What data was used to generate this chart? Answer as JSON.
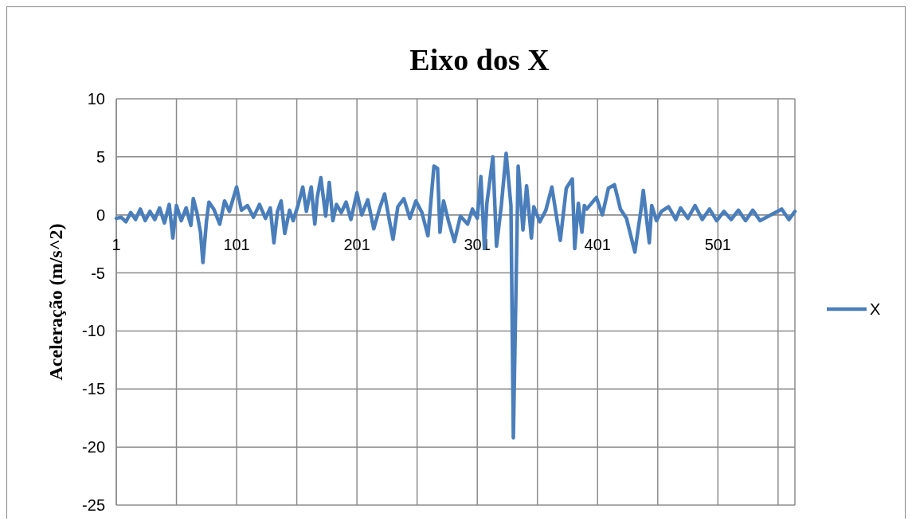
{
  "chart_data": {
    "type": "line",
    "title": "Eixo dos X",
    "ylabel": "Aceleração (m/s^2)",
    "xlim": [
      1,
      565
    ],
    "xticks": [
      1,
      {
        "value": 51,
        "label": null
      },
      101,
      {
        "value": 151,
        "label": null
      },
      201,
      {
        "value": 251,
        "label": null
      },
      301,
      {
        "value": 351,
        "label": null
      },
      401,
      {
        "value": 451,
        "label": null
      },
      501,
      {
        "value": 551,
        "label": null
      }
    ],
    "ylim": [
      -25,
      10
    ],
    "yticks": [
      -25,
      -20,
      -15,
      -10,
      -5,
      0,
      5,
      10
    ],
    "grid": true,
    "legend": "right",
    "marker": "none",
    "line_style": "solid",
    "series": [
      {
        "name": "X",
        "color": "#4a7ebb",
        "x": [
          1,
          5,
          9,
          13,
          17,
          21,
          25,
          29,
          33,
          37,
          41,
          45,
          48,
          51,
          55,
          59,
          63,
          65,
          68,
          71,
          73,
          76,
          78,
          82,
          87,
          91,
          95,
          101,
          105,
          110,
          115,
          120,
          125,
          129,
          132,
          135,
          138,
          141,
          145,
          148,
          152,
          156,
          159,
          163,
          166,
          168,
          171,
          175,
          178,
          181,
          184,
          188,
          192,
          196,
          201,
          205,
          210,
          215,
          220,
          224,
          228,
          231,
          235,
          240,
          245,
          250,
          255,
          260,
          265,
          268,
          270,
          273,
          277,
          282,
          287,
          293,
          297,
          301,
          304,
          307,
          309,
          314,
          317,
          321,
          325,
          329,
          331,
          335,
          339,
          342,
          346,
          348,
          353,
          358,
          363,
          370,
          375,
          380,
          382,
          385,
          388,
          390,
          392,
          400,
          405,
          410,
          415,
          420,
          425,
          432,
          437,
          439,
          444,
          446,
          450,
          454,
          460,
          466,
          470,
          476,
          482,
          488,
          494,
          500,
          506,
          512,
          518,
          524,
          530,
          536,
          554,
          560,
          565
        ],
        "values": [
          -0.3,
          -0.2,
          -0.6,
          0.2,
          -0.4,
          0.5,
          -0.5,
          0.3,
          -0.4,
          0.6,
          -0.7,
          0.9,
          -2.0,
          0.8,
          -0.5,
          0.6,
          -0.9,
          1.4,
          0.2,
          -1.5,
          -4.1,
          -0.5,
          1.1,
          0.5,
          -0.8,
          1.2,
          0.3,
          2.4,
          0.4,
          0.8,
          -0.2,
          0.9,
          -0.3,
          0.6,
          -2.4,
          0.3,
          1.2,
          -1.6,
          0.4,
          -0.5,
          0.8,
          2.4,
          0.3,
          2.4,
          -0.8,
          1.5,
          3.2,
          -0.1,
          2.8,
          -0.5,
          0.9,
          0.2,
          1.1,
          -0.4,
          1.9,
          0,
          1.3,
          -1.2,
          0.6,
          1.8,
          -0.5,
          -2.1,
          0.7,
          1.4,
          -0.3,
          1.2,
          0.2,
          -1.8,
          4.2,
          4.0,
          -1.5,
          1.2,
          -0.5,
          -2.3,
          -0.1,
          -0.8,
          0.5,
          -0.3,
          3.3,
          -2.9,
          1.0,
          5.0,
          -2.7,
          0.8,
          5.3,
          0.8,
          -19.2,
          4.2,
          -1.3,
          2.5,
          -2.0,
          0.7,
          -0.6,
          0.4,
          2.4,
          -2.2,
          2.3,
          3.1,
          -2.9,
          1.0,
          -1.5,
          0.8,
          0.5,
          1.5,
          0,
          2.3,
          2.6,
          0.5,
          -0.3,
          -3.2,
          0.4,
          2.1,
          -2.4,
          0.8,
          -0.5,
          0.3,
          0.7,
          -0.4,
          0.6,
          -0.3,
          0.8,
          -0.4,
          0.5,
          -0.5,
          0.3,
          -0.4,
          0.4,
          -0.5,
          0.4,
          -0.5,
          0.5,
          -0.4,
          0.3
        ]
      }
    ]
  }
}
